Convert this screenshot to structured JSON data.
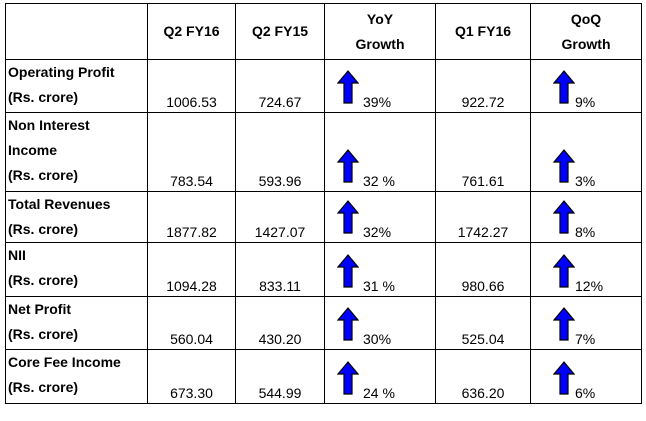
{
  "table": {
    "headers": {
      "label": "",
      "q2fy16": "Q2 FY16",
      "q2fy15": "Q2 FY15",
      "yoy_line1": "YoY",
      "yoy_line2": "Growth",
      "q1fy16": "Q1 FY16",
      "qoq_line1": "QoQ",
      "qoq_line2": "Growth"
    },
    "rows": [
      {
        "label_lines": [
          "Operating Profit",
          "(Rs. crore)"
        ],
        "q2fy16": "1006.53",
        "q2fy15": "724.67",
        "yoy": "39%",
        "q1fy16": "922.72",
        "qoq": "9%"
      },
      {
        "label_lines": [
          "Non Interest",
          "Income",
          "(Rs. crore)"
        ],
        "q2fy16": "783.54",
        "q2fy15": "593.96",
        "yoy": "32 %",
        "q1fy16": "761.61",
        "qoq": "3%"
      },
      {
        "label_lines": [
          "Total Revenues",
          "(Rs. crore)"
        ],
        "q2fy16": "1877.82",
        "q2fy15": "1427.07",
        "yoy": "32%",
        "q1fy16": "1742.27",
        "qoq": "8%"
      },
      {
        "label_lines": [
          "NII",
          "(Rs. crore)"
        ],
        "q2fy16": "1094.28",
        "q2fy15": "833.11",
        "yoy": "31 %",
        "q1fy16": "980.66",
        "qoq": "12%"
      },
      {
        "label_lines": [
          "Net Profit",
          "(Rs. crore)"
        ],
        "q2fy16": "560.04",
        "q2fy15": "430.20",
        "yoy": "30%",
        "q1fy16": "525.04",
        "qoq": "7%"
      },
      {
        "label_lines": [
          "Core Fee  Income",
          "(Rs. crore)"
        ],
        "q2fy16": "673.30",
        "q2fy15": "544.99",
        "yoy": "24 %",
        "q1fy16": "636.20",
        "qoq": "6%"
      }
    ],
    "arrow_icon": "up-arrow-icon",
    "arrow_color": "#0000ff"
  }
}
